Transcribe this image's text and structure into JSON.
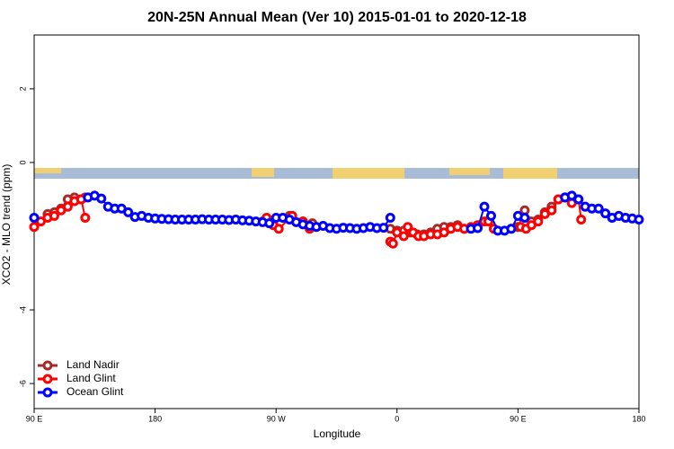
{
  "chart_data": {
    "type": "line",
    "title": "20N-25N Annual Mean (Ver 10)   2015-01-01 to 2020-12-18",
    "xlabel": "Longitude",
    "ylabel": "XCO2 - MLO trend (ppm)",
    "xlim": [
      90,
      540
    ],
    "ylim": [
      -6.68,
      3.46
    ],
    "xticks": [
      {
        "value": 90,
        "label": "90 E"
      },
      180,
      {
        "value": 270,
        "label": "90 W"
      },
      {
        "value": 360,
        "label": "0"
      },
      {
        "value": 450,
        "label": "90 E"
      },
      {
        "value": 540,
        "label": "180"
      }
    ],
    "yticks": [
      2,
      0,
      -4,
      -6
    ],
    "legend": "bottom-left",
    "series": [
      {
        "name": "Land Nadir",
        "color": "#a52a2a",
        "x": [
          100,
          105,
          110,
          115,
          120,
          125,
          128,
          140,
          260,
          265,
          280,
          290,
          297,
          320,
          355,
          360,
          365,
          370,
          375,
          380,
          385,
          390,
          395,
          400,
          405,
          410,
          420,
          445,
          450,
          455,
          460,
          465,
          470,
          475,
          480,
          485,
          490,
          495
        ],
        "values": [
          -1.4,
          -1.35,
          -1.25,
          -1.0,
          -0.95,
          -1.0,
          -0.95,
          null,
          -1.6,
          -1.65,
          -1.45,
          -1.6,
          -1.65,
          null,
          -1.8,
          -1.85,
          -1.85,
          -1.9,
          -1.95,
          -1.95,
          -1.9,
          -1.8,
          -1.75,
          -1.75,
          -1.7,
          -1.8,
          null,
          -1.8,
          -1.75,
          -1.3,
          -1.6,
          -1.55,
          -1.35,
          -1.2,
          -1.0,
          -0.95,
          -1.05,
          -1.0
        ]
      },
      {
        "name": "Land Glint",
        "color": "#ff0000",
        "x": [
          90,
          95,
          100,
          105,
          110,
          115,
          120,
          125,
          128,
          135,
          263,
          268,
          272,
          282,
          290,
          295,
          300,
          355,
          357,
          360,
          365,
          368,
          372,
          376,
          380,
          385,
          390,
          395,
          400,
          405,
          410,
          415,
          420,
          425,
          428,
          432,
          440,
          452,
          456,
          460,
          465,
          470,
          475,
          480,
          485,
          490,
          495,
          497
        ],
        "values": [
          -1.75,
          -1.6,
          -1.5,
          -1.45,
          -1.3,
          -1.2,
          -1.05,
          -1.0,
          -1.5,
          null,
          -1.5,
          -1.7,
          -1.8,
          -1.45,
          -1.6,
          -1.8,
          null,
          -2.15,
          -2.2,
          -1.9,
          -2.0,
          -1.75,
          -1.9,
          -2.0,
          -2.0,
          -1.95,
          -1.95,
          -1.9,
          -1.8,
          -1.75,
          -1.8,
          -1.75,
          -1.7,
          -1.6,
          -1.6,
          -1.8,
          null,
          -1.75,
          -1.8,
          -1.7,
          -1.6,
          -1.4,
          -1.3,
          -1.0,
          -0.95,
          -1.1,
          -1.0,
          -1.55
        ]
      },
      {
        "name": "Ocean Glint",
        "color": "#0000ff",
        "x": [
          90,
          100,
          130,
          135,
          140,
          145,
          150,
          155,
          160,
          165,
          170,
          175,
          180,
          185,
          190,
          195,
          200,
          205,
          210,
          215,
          220,
          225,
          230,
          235,
          240,
          245,
          250,
          255,
          260,
          265,
          270,
          275,
          280,
          285,
          290,
          295,
          300,
          305,
          310,
          315,
          320,
          325,
          330,
          335,
          340,
          345,
          350,
          355,
          380,
          415,
          420,
          425,
          430,
          435,
          440,
          445,
          450,
          455,
          460,
          485,
          490,
          495,
          500,
          505,
          510,
          515,
          520,
          525,
          530,
          535,
          540
        ],
        "values": [
          -1.5,
          null,
          -0.95,
          -0.9,
          -0.98,
          -1.2,
          -1.25,
          -1.25,
          -1.35,
          -1.48,
          -1.45,
          -1.5,
          -1.52,
          -1.53,
          -1.54,
          -1.55,
          -1.55,
          -1.55,
          -1.55,
          -1.54,
          -1.55,
          -1.55,
          -1.55,
          -1.56,
          -1.55,
          -1.57,
          -1.58,
          -1.6,
          -1.62,
          -1.65,
          -1.5,
          -1.5,
          -1.55,
          -1.62,
          -1.68,
          -1.72,
          -1.75,
          -1.72,
          -1.78,
          -1.8,
          -1.77,
          -1.78,
          -1.8,
          -1.78,
          -1.75,
          -1.78,
          -1.77,
          -1.5,
          null,
          -1.8,
          -1.78,
          -1.2,
          -1.45,
          -1.85,
          -1.85,
          -1.8,
          -1.45,
          -1.5,
          null,
          -0.95,
          -0.9,
          -1.0,
          -1.2,
          -1.25,
          -1.25,
          -1.38,
          -1.5,
          -1.45,
          -1.5,
          -1.52,
          -1.55
        ]
      }
    ]
  }
}
